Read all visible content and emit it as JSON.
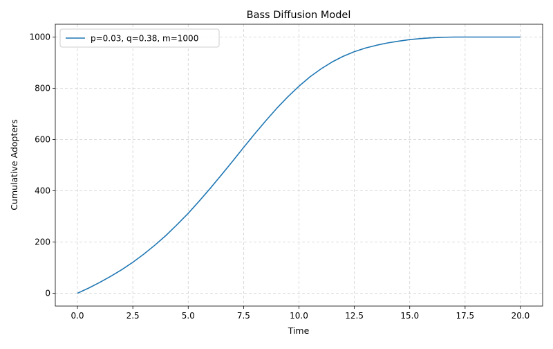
{
  "chart_data": {
    "type": "line",
    "title": "Bass Diffusion Model",
    "xlabel": "Time",
    "ylabel": "Cumulative Adopters",
    "xlim": [
      -1.0,
      21.0
    ],
    "ylim": [
      -50,
      1050
    ],
    "xticks": [
      0.0,
      2.5,
      5.0,
      7.5,
      10.0,
      12.5,
      15.0,
      17.5,
      20.0
    ],
    "xtick_labels": [
      "0.0",
      "2.5",
      "5.0",
      "7.5",
      "10.0",
      "12.5",
      "15.0",
      "17.5",
      "20.0"
    ],
    "yticks": [
      0,
      200,
      400,
      600,
      800,
      1000
    ],
    "ytick_labels": [
      "0",
      "200",
      "400",
      "600",
      "800",
      "1000"
    ],
    "grid": true,
    "grid_style": "dashed",
    "legend_position": "upper-left",
    "series": [
      {
        "name": "p=0.03, q=0.38, m=1000",
        "color": "#1f77b4",
        "x": [
          0,
          0.5,
          1,
          1.5,
          2,
          2.5,
          3,
          3.5,
          4,
          4.5,
          5,
          5.5,
          6,
          6.5,
          7,
          7.5,
          8,
          8.5,
          9,
          9.5,
          10,
          10.5,
          11,
          11.5,
          12,
          12.5,
          13,
          13.5,
          14,
          14.5,
          15,
          15.5,
          16,
          16.5,
          17,
          17.5,
          18,
          18.5,
          19,
          19.5,
          20
        ],
        "y": [
          0,
          20,
          42,
          66,
          92,
          121,
          153,
          188,
          226,
          268,
          312,
          360,
          410,
          462,
          515,
          569,
          622,
          673,
          722,
          767,
          808,
          845,
          876,
          903,
          925,
          943,
          957,
          968,
          977,
          984,
          990,
          994,
          997,
          999,
          1000,
          1000,
          1000,
          1000,
          1000,
          1000,
          1000
        ]
      }
    ]
  }
}
